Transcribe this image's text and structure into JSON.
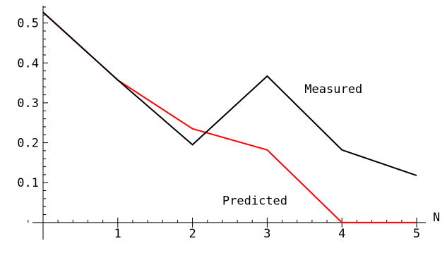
{
  "chart_data": {
    "type": "line",
    "title": "",
    "xlabel": "N",
    "ylabel": "",
    "xlim": [
      0,
      5
    ],
    "ylim": [
      -0.025,
      0.54
    ],
    "xticks": [
      1,
      2,
      3,
      4,
      5
    ],
    "xtick_labels": [
      "1",
      "2",
      "3",
      "4",
      "5"
    ],
    "yticks": [
      0.1,
      0.2,
      0.3,
      0.4,
      0.5
    ],
    "ytick_labels": [
      "0.1",
      "0.2",
      "0.3",
      "0.4",
      "0.5"
    ],
    "grid": false,
    "legend": "none",
    "series": [
      {
        "name": "Measured",
        "color": "#000000",
        "x": [
          0,
          1,
          2,
          3,
          4,
          5
        ],
        "y": [
          0.527,
          0.357,
          0.195,
          0.367,
          0.182,
          0.118
        ]
      },
      {
        "name": "Predicted",
        "color": "#ff0000",
        "x": [
          0,
          1,
          2,
          3,
          4,
          5
        ],
        "y": [
          0.527,
          0.357,
          0.235,
          0.182,
          0.0,
          0.0
        ]
      }
    ]
  }
}
